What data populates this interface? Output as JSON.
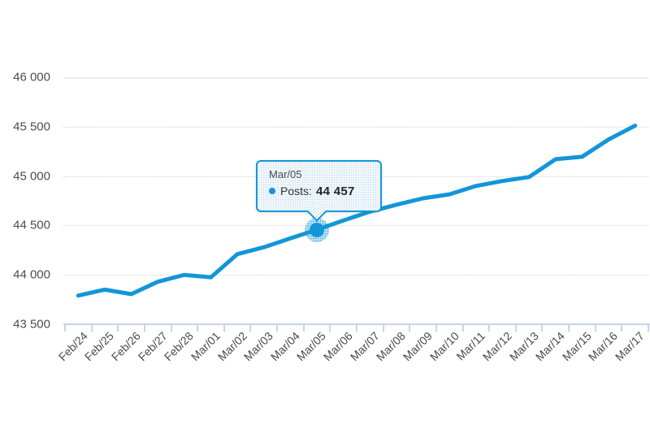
{
  "chart_data": {
    "type": "line",
    "title": "",
    "xlabel": "",
    "ylabel": "",
    "categories": [
      "Feb/24",
      "Feb/25",
      "Feb/26",
      "Feb/27",
      "Feb/28",
      "Mar/01",
      "Mar/02",
      "Mar/03",
      "Mar/04",
      "Mar/05",
      "Mar/06",
      "Mar/07",
      "Mar/08",
      "Mar/09",
      "Mar/10",
      "Mar/11",
      "Mar/12",
      "Mar/13",
      "Mar/14",
      "Mar/15",
      "Mar/16",
      "Mar/17"
    ],
    "series": [
      {
        "name": "Posts",
        "color": "#1296d8",
        "values": [
          43790,
          43850,
          43805,
          43930,
          44000,
          43975,
          44210,
          44280,
          44370,
          44457,
          44550,
          44640,
          44710,
          44775,
          44815,
          44900,
          44950,
          44990,
          45170,
          45195,
          45370,
          45510
        ]
      }
    ],
    "ylim": [
      43500,
      46000
    ],
    "y_ticks": [
      {
        "value": 43500,
        "label": "43 500"
      },
      {
        "value": 44000,
        "label": "44 000"
      },
      {
        "value": 44500,
        "label": "44 500"
      },
      {
        "value": 45000,
        "label": "45 000"
      },
      {
        "value": 45500,
        "label": "45 500"
      },
      {
        "value": 46000,
        "label": "46 000"
      }
    ],
    "grid": "horizontal, dotted light gray, top boundary solid",
    "legend_position": "none"
  },
  "tooltip": {
    "title": "Mar/05",
    "series_label": "Posts:",
    "value_label": "44 457",
    "point_category": "Mar/05",
    "point_value": 44457
  },
  "colors": {
    "line": "#1296d8",
    "axis": "#c6d5e8",
    "grid_dotted": "#d4d4d4",
    "grid_top_solid": "#ebebeb",
    "label_text": "#4a4a4a",
    "tooltip_border": "#1296d8",
    "tooltip_text": "#333333"
  }
}
